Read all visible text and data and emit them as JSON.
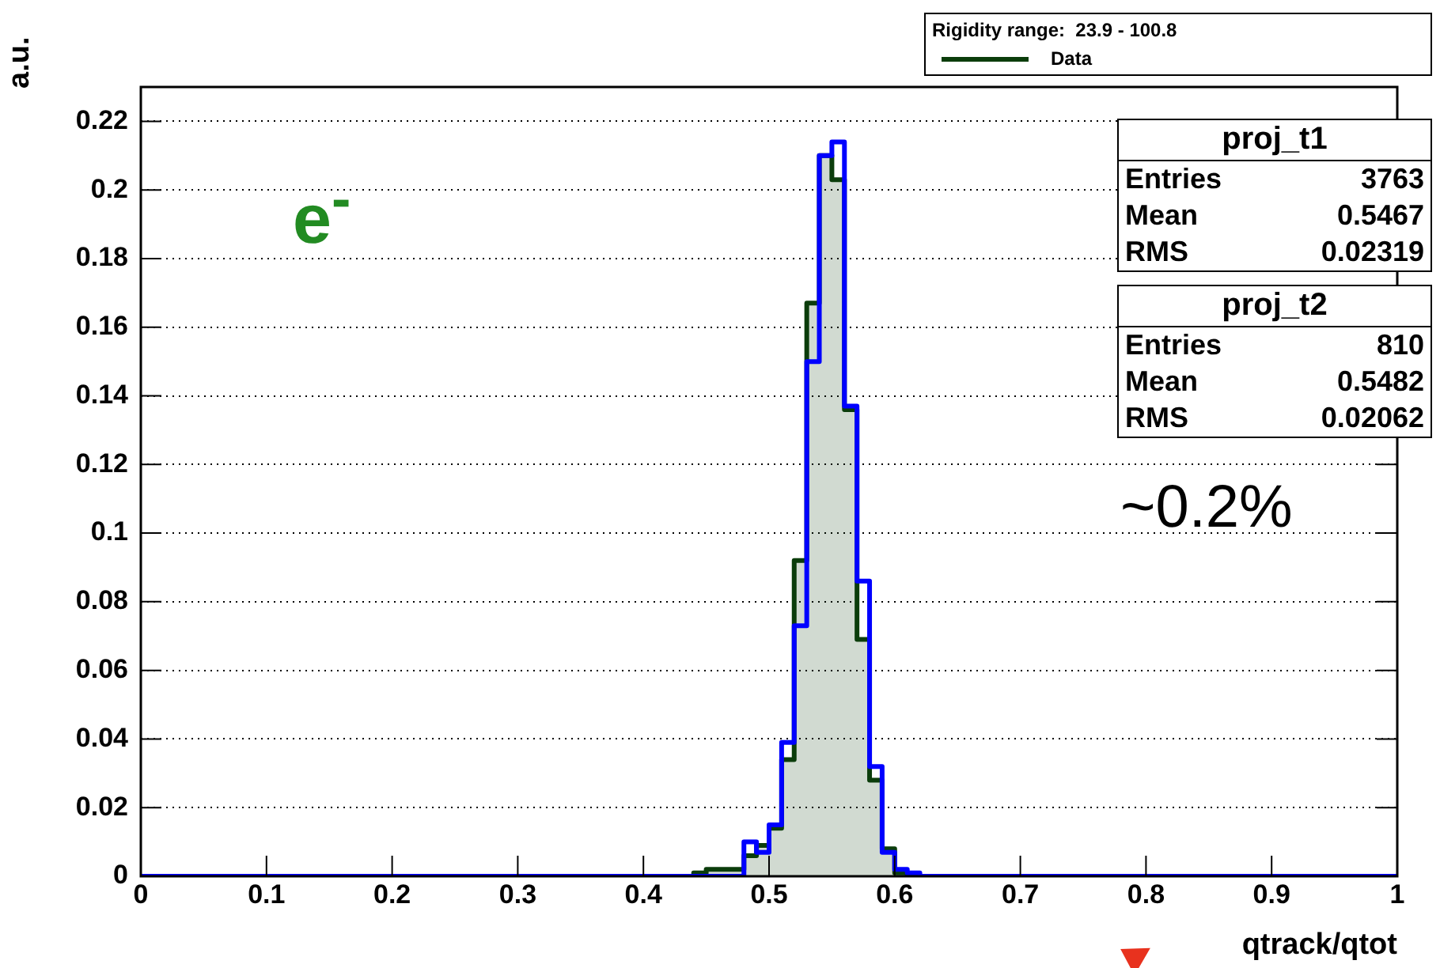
{
  "chart_data": {
    "type": "histogram",
    "legend_title": "Rigidity range:  23.9 - 100.8",
    "xlabel": "qtrack/qtot",
    "ylabel": "a.u.",
    "bins": [
      0,
      0.44,
      0.45,
      0.46,
      0.47,
      0.48,
      0.49,
      0.5,
      0.51,
      0.52,
      0.53,
      0.54,
      0.55,
      0.56,
      0.57,
      0.58,
      0.59,
      0.6,
      0.61,
      0.62,
      1
    ],
    "series": [
      {
        "name": "Data",
        "color": "#0b3d0b",
        "values": [
          0,
          0.001,
          0.002,
          0.002,
          0.002,
          0.006,
          0.009,
          0.014,
          0.034,
          0.092,
          0.167,
          0.21,
          0.203,
          0.136,
          0.069,
          0.028,
          0.008,
          0.001,
          0,
          0
        ]
      },
      {
        "color": "#0000ff",
        "values": [
          0,
          0,
          0,
          0,
          0,
          0.01,
          0.007,
          0.015,
          0.039,
          0.073,
          0.15,
          0.21,
          0.214,
          0.137,
          0.086,
          0.032,
          0.007,
          0.002,
          0.001,
          0
        ]
      }
    ],
    "xlim": [
      0,
      1
    ],
    "xticks": [
      0,
      0.1,
      0.2,
      0.3,
      0.4,
      0.5,
      0.6,
      0.7,
      0.8,
      0.9,
      1
    ],
    "ylim": [
      0,
      0.23
    ],
    "yticks": [
      0,
      0.02,
      0.04,
      0.06,
      0.08,
      0.1,
      0.12,
      0.14,
      0.16,
      0.18,
      0.2,
      0.22
    ],
    "grid": "y",
    "legend": "top right",
    "annotations": [
      "e$^{-}$",
      "~0.2%",
      "proj_t1",
      "Entries",
      "3763",
      "Mean",
      "0.5467",
      "RMS",
      "0.02319",
      "proj_t2",
      "Entries",
      "810",
      "Mean",
      "0.5482",
      "RMS",
      "0.02062"
    ]
  }
}
